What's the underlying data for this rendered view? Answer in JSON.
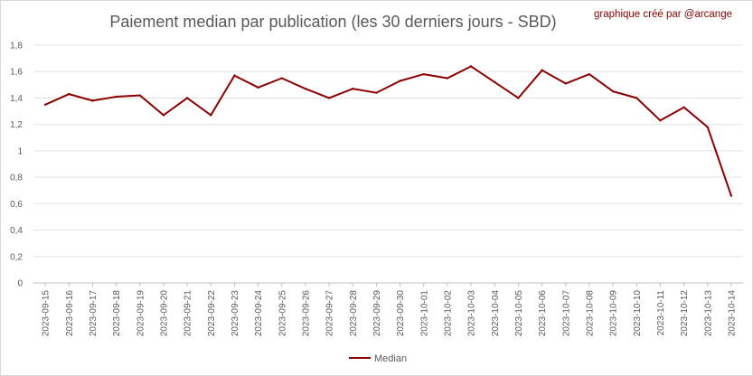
{
  "chart_data": {
    "type": "line",
    "title": "Paiement median par publication (les 30 derniers jours - SBD)",
    "credit": "graphique créé par @arcange",
    "xlabel": "",
    "ylabel": "",
    "ylim": [
      0,
      1.8
    ],
    "ytick_values": [
      0,
      0.2,
      0.4,
      0.6,
      0.8,
      1,
      1.2,
      1.4,
      1.6,
      1.8
    ],
    "ytick_labels": [
      "0",
      "0,2",
      "0,4",
      "0,6",
      "0,8",
      "1",
      "1,2",
      "1,4",
      "1,6",
      "1,8"
    ],
    "grid": "horizontal",
    "legend": "bottom-center",
    "categories": [
      "2023-09-15",
      "2023-09-16",
      "2023-09-17",
      "2023-09-18",
      "2023-09-19",
      "2023-09-20",
      "2023-09-21",
      "2023-09-22",
      "2023-09-23",
      "2023-09-24",
      "2023-09-25",
      "2023-09-26",
      "2023-09-27",
      "2023-09-28",
      "2023-09-29",
      "2023-09-30",
      "2023-10-01",
      "2023-10-02",
      "2023-10-03",
      "2023-10-04",
      "2023-10-05",
      "2023-10-06",
      "2023-10-07",
      "2023-10-08",
      "2023-10-09",
      "2023-10-10",
      "2023-10-11",
      "2023-10-12",
      "2023-10-13",
      "2023-10-14"
    ],
    "series": [
      {
        "name": "Median",
        "color": "#8b0000",
        "values": [
          1.35,
          1.43,
          1.38,
          1.41,
          1.42,
          1.27,
          1.4,
          1.27,
          1.57,
          1.48,
          1.55,
          1.47,
          1.4,
          1.47,
          1.44,
          1.53,
          1.58,
          1.55,
          1.64,
          1.52,
          1.4,
          1.61,
          1.51,
          1.58,
          1.45,
          1.4,
          1.23,
          1.33,
          1.18,
          0.66
        ]
      }
    ]
  }
}
